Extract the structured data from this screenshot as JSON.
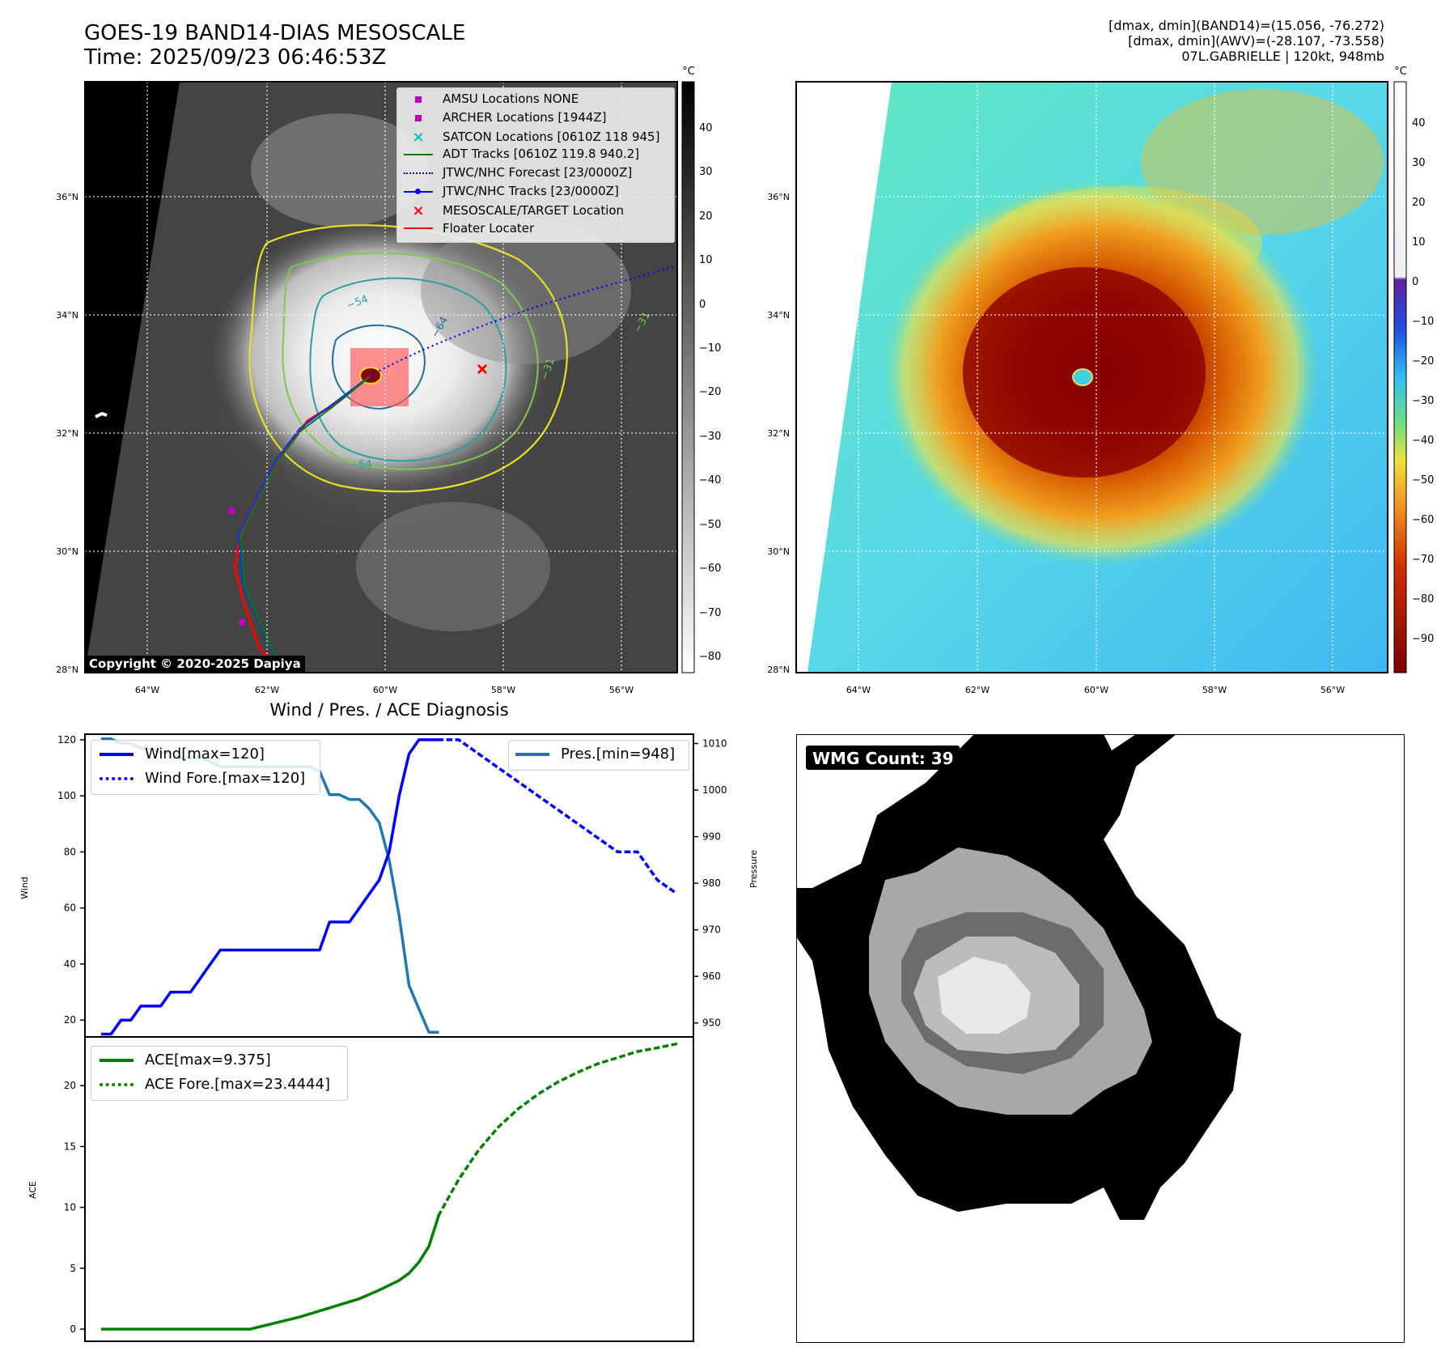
{
  "header": {
    "title_line1": "GOES-19 BAND14-DIAS MESOSCALE",
    "title_line2": "Time: 2025/09/23 06:46:53Z",
    "info_line1": "[dmax, dmin](BAND14)=(15.056, -76.272)",
    "info_line2": "[dmax, dmin](AWV)=(-28.107, -73.558)",
    "info_line3": "07L.GABRIELLE | 120kt, 948mb"
  },
  "map_ir": {
    "lat_labels": [
      "36°N",
      "34°N",
      "32°N",
      "30°N",
      "28°N"
    ],
    "lon_labels": [
      "64°W",
      "62°W",
      "60°W",
      "58°W",
      "56°W"
    ],
    "colorbar_unit": "°C",
    "colorbar_ticks": [
      "40",
      "30",
      "20",
      "10",
      "0",
      "−10",
      "−20",
      "−30",
      "−40",
      "−50",
      "−60",
      "−70",
      "−80"
    ],
    "contour_labels": [
      "−54",
      "−64",
      "−31",
      "−31",
      "−64"
    ],
    "copyright": "Copyright © 2020-2025 Dapiya",
    "legend": [
      {
        "label": "AMSU Locations NONE",
        "marker": "square",
        "color": "#c000c0"
      },
      {
        "label": "ARCHER Locations [1944Z]",
        "marker": "square",
        "color": "#c000c0"
      },
      {
        "label": "SATCON Locations [0610Z 118 945]",
        "marker": "x",
        "color": "#00bfbf"
      },
      {
        "label": "ADT Tracks [0610Z 119.8 940.2]",
        "marker": "line",
        "color": "#008000"
      },
      {
        "label": "JTWC/NHC Forecast [23/0000Z]",
        "marker": "dotted",
        "color": "#0000ff"
      },
      {
        "label": "JTWC/NHC Tracks [23/0000Z]",
        "marker": "line-dot",
        "color": "#0000ff"
      },
      {
        "label": "MESOSCALE/TARGET Location",
        "marker": "x",
        "color": "#ff0000"
      },
      {
        "label": "Floater Locater",
        "marker": "line",
        "color": "#ff0000"
      }
    ]
  },
  "map_color": {
    "lat_labels": [
      "36°N",
      "34°N",
      "32°N",
      "30°N",
      "28°N"
    ],
    "lon_labels": [
      "64°W",
      "62°W",
      "60°W",
      "58°W",
      "56°W"
    ],
    "colorbar_unit": "°C",
    "colorbar_ticks": [
      "40",
      "30",
      "20",
      "10",
      "0",
      "−10",
      "−20",
      "−30",
      "−40",
      "−50",
      "−60",
      "−70",
      "−80",
      "−90"
    ]
  },
  "diagnosis": {
    "title": "Wind / Pres. / ACE Diagnosis",
    "wind_ylabel": "Wind",
    "pres_ylabel": "Pressure",
    "ace_ylabel": "ACE",
    "wind_ticks": [
      "120",
      "100",
      "80",
      "60",
      "40",
      "20"
    ],
    "pres_ticks": [
      "1010",
      "1000",
      "990",
      "980",
      "970",
      "960",
      "950"
    ],
    "ace_ticks": [
      "20",
      "15",
      "10",
      "5",
      "0"
    ],
    "legend_wind": "Wind[max=120]",
    "legend_wind_fore": "Wind Fore.[max=120]",
    "legend_pres": "Pres.[min=948]",
    "legend_ace": "ACE[max=9.375]",
    "legend_ace_fore": "ACE Fore.[max=23.4444]"
  },
  "wmg": {
    "label": "WMG Count: 39"
  },
  "chart_data": [
    {
      "type": "line",
      "title": "Wind / Pres. / ACE Diagnosis",
      "ylabel": "Wind",
      "ylim": [
        14,
        122
      ],
      "series": [
        {
          "name": "Wind[max=120]",
          "x": [
            0,
            1,
            2,
            3,
            4,
            5,
            6,
            7,
            8,
            9,
            10,
            11,
            12,
            13,
            14,
            15,
            16,
            17,
            18,
            19,
            20,
            21,
            22,
            23,
            24,
            25,
            26,
            27,
            28,
            29,
            30,
            31,
            32,
            33,
            34
          ],
          "values": [
            15,
            15,
            20,
            20,
            25,
            25,
            25,
            30,
            30,
            30,
            35,
            40,
            45,
            45,
            45,
            45,
            45,
            45,
            45,
            45,
            45,
            45,
            45,
            55,
            55,
            55,
            60,
            65,
            70,
            80,
            100,
            115,
            120,
            120,
            120
          ]
        },
        {
          "name": "Wind Fore.[max=120]",
          "x": [
            34,
            36,
            38,
            40,
            42,
            44,
            46,
            48,
            50,
            52,
            54,
            56,
            58
          ],
          "values": [
            120,
            120,
            115,
            110,
            105,
            100,
            95,
            90,
            85,
            80,
            80,
            70,
            65
          ]
        }
      ]
    },
    {
      "type": "line",
      "ylabel": "Pressure",
      "ylim": [
        947,
        1012
      ],
      "series": [
        {
          "name": "Pres.[min=948]",
          "x": [
            0,
            1,
            2,
            3,
            4,
            5,
            6,
            7,
            8,
            9,
            10,
            11,
            12,
            13,
            14,
            15,
            16,
            17,
            18,
            19,
            20,
            21,
            22,
            23,
            24,
            25,
            26,
            27,
            28,
            29,
            30,
            31,
            32,
            33,
            34
          ],
          "values": [
            1011,
            1011,
            1010,
            1010,
            1009,
            1009,
            1008,
            1008,
            1007,
            1007,
            1007,
            1006,
            1005,
            1005,
            1005,
            1005,
            1005,
            1005,
            1005,
            1005,
            1005,
            1005,
            1004,
            999,
            999,
            998,
            998,
            996,
            993,
            985,
            973,
            958,
            953,
            948,
            948
          ]
        }
      ]
    },
    {
      "type": "line",
      "ylabel": "ACE",
      "ylim": [
        -1,
        24
      ],
      "series": [
        {
          "name": "ACE[max=9.375]",
          "x": [
            0,
            5,
            10,
            15,
            20,
            22,
            24,
            26,
            28,
            30,
            31,
            32,
            33,
            34
          ],
          "values": [
            0,
            0,
            0,
            0,
            1.0,
            1.5,
            2.0,
            2.5,
            3.2,
            4.0,
            4.6,
            5.5,
            6.8,
            9.375
          ]
        },
        {
          "name": "ACE Fore.[max=23.4444]",
          "x": [
            34,
            36,
            38,
            40,
            42,
            44,
            46,
            48,
            50,
            52,
            54,
            56,
            58
          ],
          "values": [
            9.375,
            12.3,
            14.7,
            16.6,
            18.1,
            19.3,
            20.3,
            21.1,
            21.8,
            22.3,
            22.8,
            23.1,
            23.4444
          ]
        }
      ]
    }
  ]
}
